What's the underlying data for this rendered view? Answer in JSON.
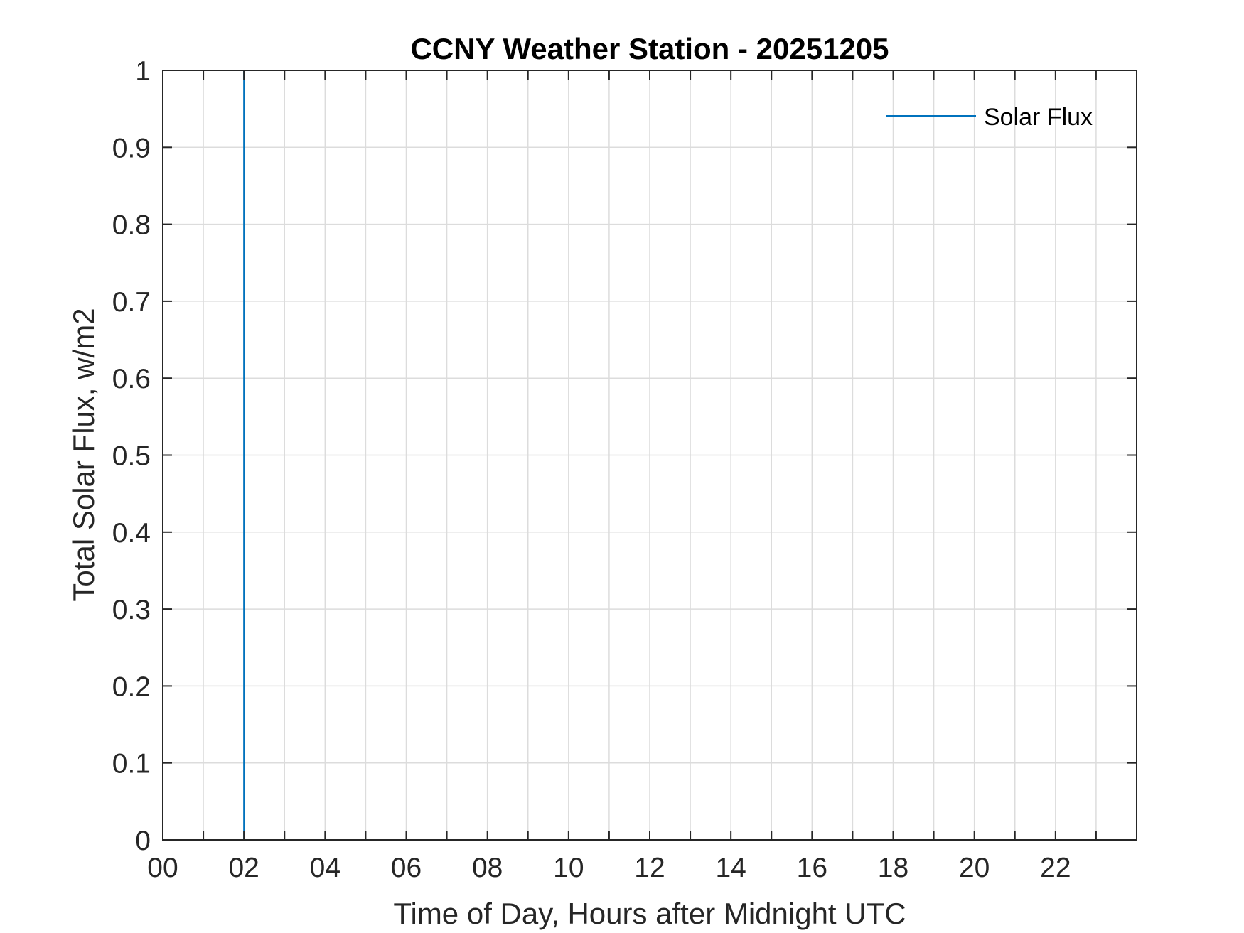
{
  "chart_data": {
    "type": "line",
    "title": "CCNY Weather Station - 20251205",
    "xlabel": "Time of Day, Hours after Midnight UTC",
    "ylabel": "Total Solar Flux, w/m2",
    "xlim": [
      0,
      24
    ],
    "ylim": [
      0,
      1
    ],
    "x_ticks": [
      0,
      2,
      4,
      6,
      8,
      10,
      12,
      14,
      16,
      18,
      20,
      22
    ],
    "x_tick_labels": [
      "00",
      "02",
      "04",
      "06",
      "08",
      "10",
      "12",
      "14",
      "16",
      "18",
      "20",
      "22"
    ],
    "x_minor_ticks": [
      1,
      3,
      5,
      7,
      9,
      11,
      13,
      15,
      17,
      19,
      21,
      23
    ],
    "y_ticks": [
      0,
      0.1,
      0.2,
      0.3,
      0.4,
      0.5,
      0.6,
      0.7,
      0.8,
      0.9,
      1
    ],
    "y_tick_labels": [
      "0",
      "0.1",
      "0.2",
      "0.3",
      "0.4",
      "0.5",
      "0.6",
      "0.7",
      "0.8",
      "0.9",
      "1"
    ],
    "grid": true,
    "legend_position": "top-right",
    "series": [
      {
        "name": "Solar Flux",
        "color": "#0072BD",
        "x": [
          2,
          2
        ],
        "y": [
          0,
          1
        ]
      }
    ]
  }
}
